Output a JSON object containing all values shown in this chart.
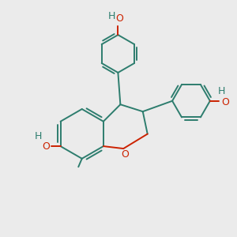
{
  "background_color": "#ebebeb",
  "bond_color": "#2d7d6e",
  "oxygen_color": "#cc2200",
  "figsize": [
    3.0,
    3.0
  ],
  "dpi": 100,
  "xlim": [
    0,
    10
  ],
  "ylim": [
    0,
    10
  ]
}
